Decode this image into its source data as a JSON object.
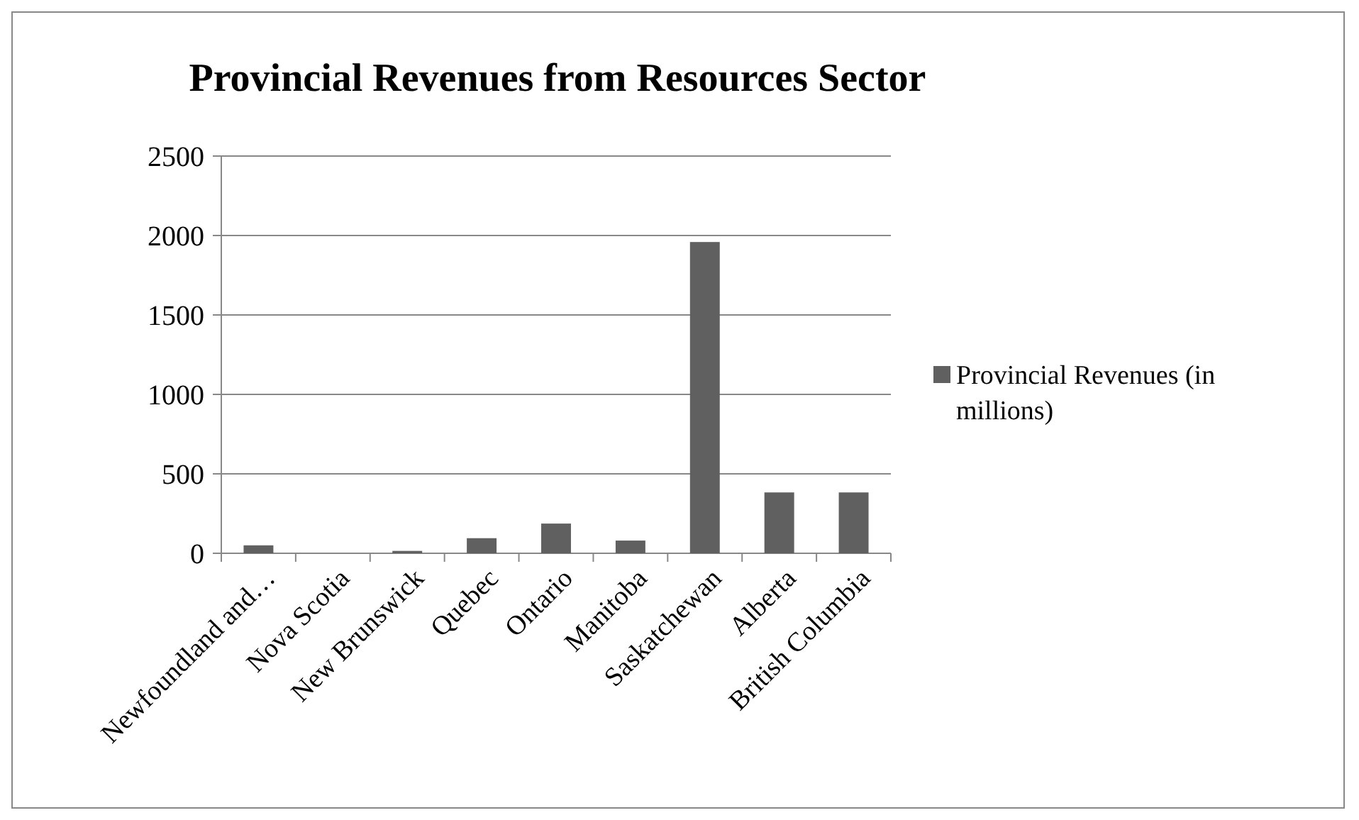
{
  "chart_data": {
    "type": "bar",
    "title": "Provincial Revenues from Resources Sector",
    "categories": [
      "Newfoundland and…",
      "Nova Scotia",
      "New Brunswick",
      "Quebec",
      "Ontario",
      "Manitoba",
      "Saskatchewan",
      "Alberta",
      "British Columbia"
    ],
    "series": [
      {
        "name": "Provincial Revenues (in millions)",
        "color": "#606060",
        "values": [
          50,
          0,
          15,
          95,
          187,
          80,
          1959,
          383,
          383
        ]
      }
    ],
    "ylim": [
      0,
      2500
    ],
    "yticks": [
      0,
      500,
      1000,
      1500,
      2000,
      2500
    ],
    "grid": "y",
    "legend": "right"
  }
}
